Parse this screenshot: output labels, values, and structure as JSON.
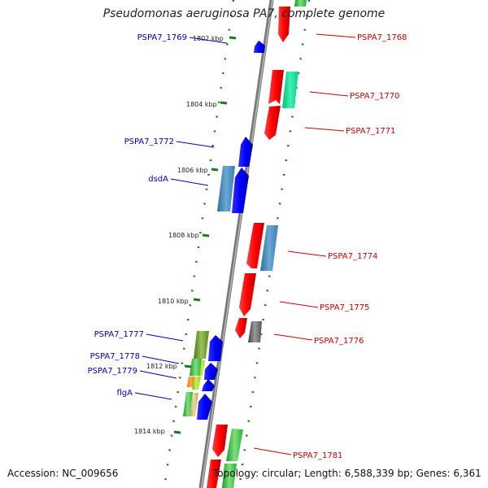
{
  "title": "Pseudomonas aeruginosa PA7, complete genome",
  "footer": {
    "accession_label": "Accession:",
    "accession": "NC_009656",
    "topology_label": "Topology:",
    "topology": "circular",
    "length_label": "Length:",
    "length": "6,588,339 bp",
    "genes_label": "Genes:",
    "genes": "6,361"
  },
  "colors": {
    "forward_label": "#cc0000",
    "reverse_label": "#0000bb",
    "backbone": "#888888",
    "tick": "#1a7a1a"
  },
  "kbp_ticks": [
    "1802 kbp",
    "1804 kbp",
    "1806 kbp",
    "1808 kbp",
    "1810 kbp",
    "1812 kbp",
    "1814 kbp"
  ],
  "genes_forward": [
    {
      "name": "PSPA7_1768"
    },
    {
      "name": "PSPA7_1770"
    },
    {
      "name": "PSPA7_1771"
    },
    {
      "name": "PSPA7_1774"
    },
    {
      "name": "PSPA7_1775"
    },
    {
      "name": "PSPA7_1776"
    },
    {
      "name": "PSPA7_1781"
    }
  ],
  "genes_reverse": [
    {
      "name": "PSPA7_1769"
    },
    {
      "name": "PSPA7_1772"
    },
    {
      "name": "dsdA"
    },
    {
      "name": "PSPA7_1777"
    },
    {
      "name": "PSPA7_1778"
    },
    {
      "name": "PSPA7_1779"
    },
    {
      "name": "flgA"
    }
  ]
}
